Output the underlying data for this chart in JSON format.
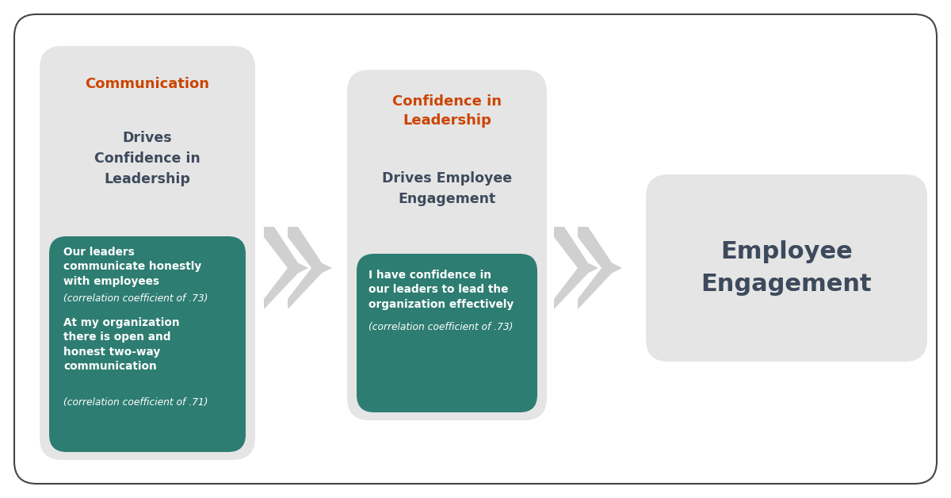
{
  "background_color": "#ffffff",
  "border_color": "#444444",
  "light_gray": "#e5e5e5",
  "teal_color": "#2e7d72",
  "orange_color": "#cc4400",
  "dark_gray_text": "#3d4a5c",
  "white_text": "#ffffff",
  "arrow_color": "#d0d0d0",
  "box1_title_orange": "Communication",
  "box1_title_gray": "Drives\nConfidence in\nLeadership",
  "box1_item1_bold": "Our leaders\ncommunicate honestly\nwith employees",
  "box1_item1_italic": "(correlation coefficient of .73)",
  "box1_item2_bold": "At my organization\nthere is open and\nhonest two-way\ncommunication",
  "box1_item2_italic": "(correlation coefficient of .71)",
  "box2_title_orange": "Confidence in\nLeadership",
  "box2_title_gray": "Drives Employee\nEngagement",
  "box2_item1_bold": "I have confidence in\nour leaders to lead the\norganization effectively",
  "box2_item1_italic": "(correlation coefficient of .73)",
  "box3_text": "Employee\nEngagement"
}
